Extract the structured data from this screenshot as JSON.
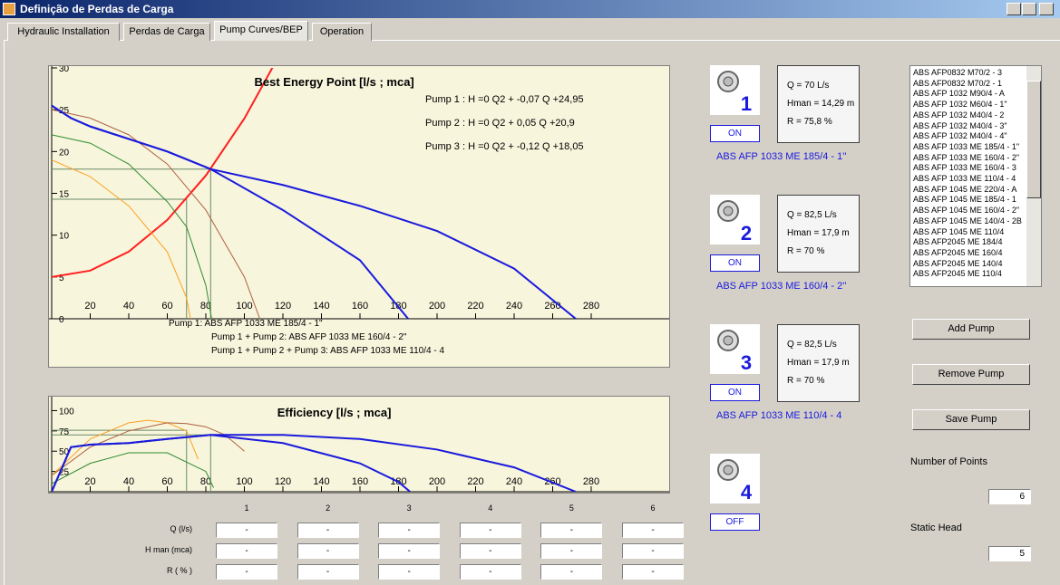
{
  "window": {
    "title": "Definição de Perdas de Carga"
  },
  "tabs": [
    "Hydraulic Installation",
    "Perdas de Carga",
    "Pump Curves/BEP",
    "Operation"
  ],
  "bep_chart": {
    "type": "line",
    "title": "Best Energy Point [l/s ; mca]",
    "xlim": [
      0,
      320
    ],
    "ylim": [
      0,
      30
    ],
    "xticks": [
      20,
      40,
      60,
      80,
      100,
      120,
      140,
      160,
      180,
      200,
      220,
      240,
      260,
      280
    ],
    "yticks": [
      0,
      5,
      10,
      15,
      20,
      25,
      30
    ],
    "equations": [
      "Pump 1 : H =0 Q2 + -0,07 Q +24,95",
      "Pump 2 : H =0 Q2 + 0,05 Q +20,9",
      "Pump 3 : H =0 Q2 + -0,12 Q +18,05"
    ],
    "legend": [
      "Pump 1: ABS AFP 1033 ME 185/4 - 1\"",
      "Pump 1 + Pump 2: ABS AFP 1033 ME 160/4 - 2\"",
      "Pump 1 + Pump 2 + Pump 3: ABS AFP 1033 ME 110/4 - 4"
    ],
    "series": [
      {
        "color": "#ff2020",
        "x": [
          0,
          20,
          40,
          60,
          80,
          100,
          120,
          140
        ],
        "values": [
          5,
          5.76,
          8.03,
          11.82,
          17.13,
          23.95,
          32.3,
          42.1
        ]
      },
      {
        "color": "#ffa020",
        "x": [
          0,
          20,
          40,
          60,
          70,
          72
        ],
        "values": [
          19,
          17,
          13.5,
          8,
          2.5,
          0
        ]
      },
      {
        "color": "#2e8b2e",
        "x": [
          0,
          20,
          40,
          60,
          70,
          80,
          83
        ],
        "values": [
          22,
          21,
          18.5,
          14,
          11,
          4,
          0
        ]
      },
      {
        "color": "#b06040",
        "x": [
          0,
          20,
          40,
          60,
          80,
          100,
          108
        ],
        "values": [
          25,
          24,
          22,
          18.5,
          13,
          5,
          0
        ]
      },
      {
        "color": "#1a1adc",
        "x": [
          0,
          10,
          20,
          40,
          60,
          82.5,
          120,
          160,
          185
        ],
        "values": [
          25.5,
          24,
          23,
          21.5,
          20,
          17.9,
          13,
          7,
          0
        ]
      },
      {
        "color": "#1a1adc",
        "x": [
          0,
          10,
          20,
          40,
          60,
          82.5,
          120,
          160,
          200,
          240,
          272
        ],
        "values": [
          25.5,
          24,
          23,
          21.5,
          20,
          17.9,
          16,
          13.5,
          10.5,
          6,
          0
        ]
      }
    ],
    "operating_points": [
      {
        "x": 70,
        "y": 14.29
      },
      {
        "x": 82.5,
        "y": 17.9
      }
    ]
  },
  "efficiency_chart": {
    "type": "line",
    "title": "Efficiency [l/s ; mca]",
    "xlim": [
      0,
      320
    ],
    "ylim": [
      0,
      115
    ],
    "xticks": [
      20,
      40,
      60,
      80,
      100,
      120,
      140,
      160,
      180,
      200,
      220,
      240,
      260,
      280
    ],
    "yticks": [
      25,
      50,
      75,
      100
    ],
    "series": [
      {
        "color": "#ffa020",
        "x": [
          0,
          20,
          40,
          50,
          60,
          70,
          76
        ],
        "values": [
          20,
          65,
          85,
          88,
          85,
          75,
          40
        ]
      },
      {
        "color": "#b06040",
        "x": [
          0,
          20,
          40,
          60,
          70,
          80,
          90,
          100
        ],
        "values": [
          20,
          55,
          75,
          85,
          84,
          80,
          70,
          50
        ]
      },
      {
        "color": "#2e8b2e",
        "x": [
          0,
          20,
          40,
          60,
          80,
          84
        ],
        "values": [
          10,
          35,
          48,
          48,
          25,
          5
        ]
      },
      {
        "color": "#1a1adc",
        "x": [
          0,
          10,
          20,
          40,
          60,
          82.5,
          120,
          160,
          180,
          186
        ],
        "values": [
          0,
          55,
          58,
          60,
          65,
          70,
          60,
          35,
          12,
          0
        ]
      },
      {
        "color": "#1a1adc",
        "x": [
          0,
          10,
          20,
          40,
          60,
          82.5,
          120,
          160,
          200,
          240,
          272
        ],
        "values": [
          0,
          55,
          58,
          60,
          65,
          70,
          70,
          65,
          52,
          30,
          0
        ]
      }
    ],
    "operating_points": [
      {
        "x": 70,
        "y": 75.8
      },
      {
        "x": 82.5,
        "y": 70
      }
    ]
  },
  "pumps": [
    {
      "number": 1,
      "state": "ON",
      "q": "Q = 70 L/s",
      "hman": "Hman = 14,29  m",
      "r": "R = 75,8  %",
      "model": "ABS AFP 1033 ME 185/4 - 1''"
    },
    {
      "number": 2,
      "state": "ON",
      "q": "Q = 82,5 L/s",
      "hman": "Hman = 17,9  m",
      "r": "R = 70  %",
      "model": "ABS AFP 1033 ME 160/4 - 2''"
    },
    {
      "number": 3,
      "state": "ON",
      "q": "Q = 82,5 L/s",
      "hman": "Hman = 17,9  m",
      "r": "R = 70  %",
      "model": "ABS AFP 1033 ME 110/4 - 4"
    },
    {
      "number": 4,
      "state": "OFF"
    }
  ],
  "pump_list": [
    "ABS AFP0832 M70/2 - 3",
    "ABS AFP0832 M70/2 - 1",
    "ABS AFP 1032 M90/4 - A",
    "ABS AFP 1032 M60/4 - 1\"",
    "ABS AFP 1032 M40/4 - 2",
    "ABS AFP 1032 M40/4 - 3\"",
    "ABS AFP 1032 M40/4 - 4\"",
    "ABS AFP 1033 ME 185/4 - 1\"",
    "ABS AFP 1033 ME 160/4 - 2\"",
    "ABS AFP 1033 ME 160/4 - 3",
    "ABS AFP 1033 ME 110/4 - 4",
    "ABS AFP 1045 ME 220/4 - A",
    "ABS AFP 1045 ME 185/4 - 1",
    "ABS AFP 1045 ME 160/4 - 2\"",
    "ABS AFP 1045 ME 140/4 - 2B",
    "ABS AFP 1045 ME 110/4",
    "ABS AFP2045 ME 184/4",
    "ABS AFP2045 ME 160/4",
    "ABS AFP2045 ME 140/4",
    "ABS AFP2045 ME 110/4"
  ],
  "buttons": [
    "Add Pump",
    "Remove Pump",
    "Save Pump"
  ],
  "number_of_points": {
    "label": "Number of Points",
    "value": 6
  },
  "static_head": {
    "label": "Static Head",
    "value": 5
  },
  "table": {
    "columns": [
      1,
      2,
      3,
      4,
      5,
      6
    ],
    "rows": [
      {
        "label": "Q (l/s)",
        "cells": [
          "-",
          "-",
          "-",
          "-",
          "-",
          "-"
        ]
      },
      {
        "label": "H man (mca)",
        "cells": [
          "-",
          "-",
          "-",
          "-",
          "-",
          "-"
        ]
      },
      {
        "label": "R ( % )",
        "cells": [
          "-",
          "-",
          "-",
          "-",
          "-",
          "-"
        ]
      }
    ]
  }
}
